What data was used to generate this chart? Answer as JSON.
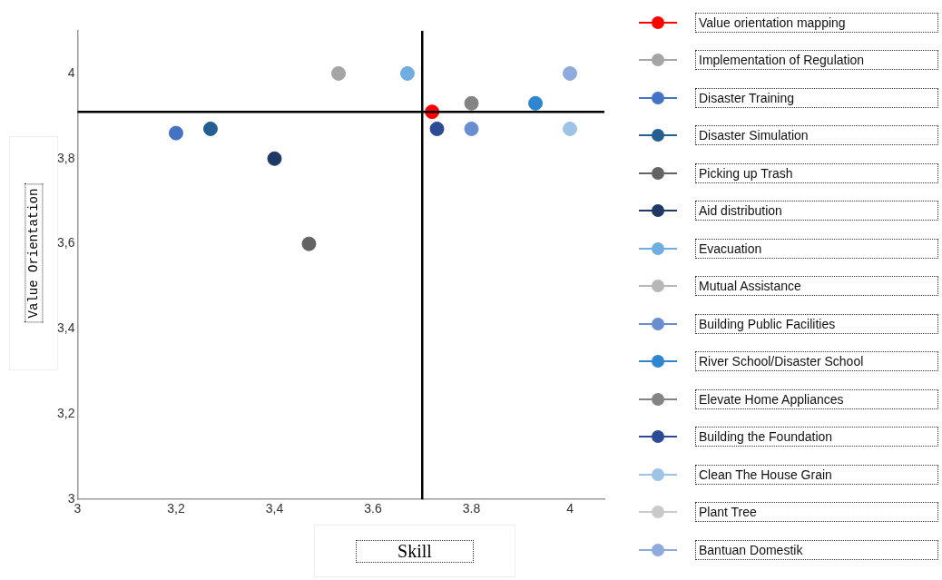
{
  "chart_data": {
    "type": "scatter",
    "xlabel": "Skill",
    "ylabel": "Value Orientation",
    "xlim": [
      3,
      4.07
    ],
    "ylim": [
      3,
      4.1
    ],
    "xticks": [
      3,
      {
        "value": 3.2,
        "label": "3,2"
      },
      {
        "value": 3.4,
        "label": "3,4"
      },
      3.6,
      3.8,
      4
    ],
    "yticks": [
      3,
      {
        "value": 3.2,
        "label": "3,2"
      },
      {
        "value": 3.4,
        "label": "3,4"
      },
      {
        "value": 3.6,
        "label": "3,6"
      },
      {
        "value": 3.8,
        "label": "3,8"
      },
      4
    ],
    "grid": false,
    "legend": "right",
    "marker": "circle",
    "ref_lines": [
      {
        "axis": "x",
        "value": 3.7,
        "color": "#000000"
      },
      {
        "axis": "y",
        "value": 3.91,
        "color": "#000000"
      }
    ],
    "series": [
      {
        "name": "Value orientation mapping",
        "color": "#ff0000",
        "x": [
          3.72
        ],
        "values": [
          3.91
        ]
      },
      {
        "name": "Implementation of Regulation",
        "color": "#a5a5a5",
        "x": [
          3.53
        ],
        "values": [
          4.0
        ]
      },
      {
        "name": "Disaster Training",
        "color": "#4472c4",
        "x": [
          3.2
        ],
        "values": [
          3.86
        ]
      },
      {
        "name": "Disaster Simulation",
        "color": "#255e91",
        "x": [
          3.27
        ],
        "values": [
          3.87
        ]
      },
      {
        "name": "Picking up Trash",
        "color": "#636363",
        "x": [
          3.47
        ],
        "values": [
          3.6
        ]
      },
      {
        "name": "Aid distribution",
        "color": "#1f3864",
        "x": [
          3.4
        ],
        "values": [
          3.8
        ]
      },
      {
        "name": "Evacuation",
        "color": "#70ade0",
        "x": [
          3.67
        ],
        "values": [
          4.0
        ]
      },
      {
        "name": "Mutual Assistance",
        "color": "#b7b7b7",
        "x": [
          null
        ],
        "values": [
          null
        ]
      },
      {
        "name": "Building Public Facilities",
        "color": "#698ed0",
        "x": [
          3.8
        ],
        "values": [
          3.87
        ]
      },
      {
        "name": "River School/Disaster School",
        "color": "#2e86d1",
        "x": [
          3.93
        ],
        "values": [
          3.93
        ]
      },
      {
        "name": "Elevate Home Appliances",
        "color": "#848484",
        "x": [
          3.8
        ],
        "values": [
          3.93
        ]
      },
      {
        "name": "Building the Foundation",
        "color": "#2c4a96",
        "x": [
          3.73
        ],
        "values": [
          3.87
        ]
      },
      {
        "name": "Clean The House Grain",
        "color": "#9dc3e6",
        "x": [
          4.0
        ],
        "values": [
          3.87
        ]
      },
      {
        "name": "Plant Tree",
        "color": "#c9c9c9",
        "x": [
          null
        ],
        "values": [
          null
        ]
      },
      {
        "name": "Bantuan Domestik",
        "color": "#8faadc",
        "x": [
          4.0
        ],
        "values": [
          4.0
        ]
      }
    ]
  }
}
